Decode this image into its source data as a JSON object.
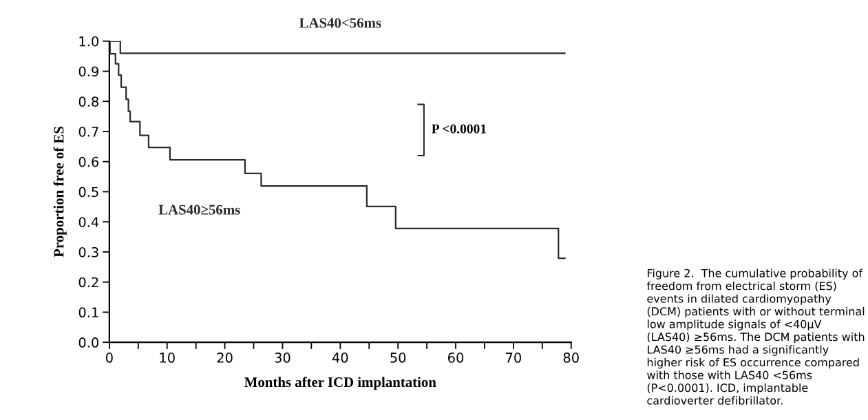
{
  "chart_data": {
    "type": "step",
    "xlabel": "Months after ICD implantation",
    "ylabel": "Proportion free of ES",
    "series": [
      {
        "name": "LAS40<56ms",
        "color": "#2b2b2b",
        "x": [
          0,
          1.9,
          78.9
        ],
        "values": [
          1.0,
          0.96,
          0.96
        ]
      },
      {
        "name": "LAS40≥56ms",
        "color": "#2b2b2b",
        "x": [
          0,
          0.1,
          1.06,
          1.6,
          2.05,
          2.9,
          3.3,
          3.6,
          5.3,
          6.8,
          10.5,
          23.5,
          26.3,
          44.6,
          49.6,
          77.8,
          78.9
        ],
        "values": [
          1.0,
          0.958,
          0.925,
          0.887,
          0.847,
          0.807,
          0.767,
          0.733,
          0.687,
          0.647,
          0.606,
          0.561,
          0.519,
          0.451,
          0.378,
          0.279,
          0.279
        ]
      }
    ],
    "xlim": [
      0,
      80
    ],
    "ylim": [
      0,
      1.0
    ],
    "xticks": [
      0,
      {
        "value": 5,
        "label": null
      },
      10,
      {
        "value": 15,
        "label": null
      },
      20,
      {
        "value": 25,
        "label": null
      },
      30,
      {
        "value": 35,
        "label": null
      },
      40,
      {
        "value": 45,
        "label": null
      },
      50,
      {
        "value": 55,
        "label": null
      },
      60,
      {
        "value": 65,
        "label": null
      },
      70,
      {
        "value": 75,
        "label": null
      },
      80
    ],
    "yticks": [
      {
        "value": 0,
        "label": "0.0"
      },
      {
        "value": 0.1,
        "label": "0.1"
      },
      {
        "value": 0.2,
        "label": "0.2"
      },
      {
        "value": 0.3,
        "label": "0.3"
      },
      {
        "value": 0.4,
        "label": "0.4"
      },
      {
        "value": 0.5,
        "label": "0.5"
      },
      {
        "value": 0.6,
        "label": "0.6"
      },
      {
        "value": 0.7,
        "label": "0.7"
      },
      {
        "value": 0.8,
        "label": "0.8"
      },
      {
        "value": 0.9,
        "label": "0.9"
      },
      {
        "value": 1.0,
        "label": "1.0"
      }
    ],
    "annotations": [
      "P <0.0001",
      "Figure 2.  The cumulative probability of freedom from electrical storm (ES) events in dilated cardiomyopathy (DCM) patients with or without terminal low amplitude signals of <40μV (LAS40) ≥56ms. The DCM patients with LAS40 ≥56ms had a significantly higher risk of ES occurrence compared with those with LAS40 <56ms (P<0.0001). ICD, implantable cardioverter defibrillator."
    ],
    "grid": false,
    "legend": false,
    "marker": "none",
    "line_style": "solid"
  }
}
